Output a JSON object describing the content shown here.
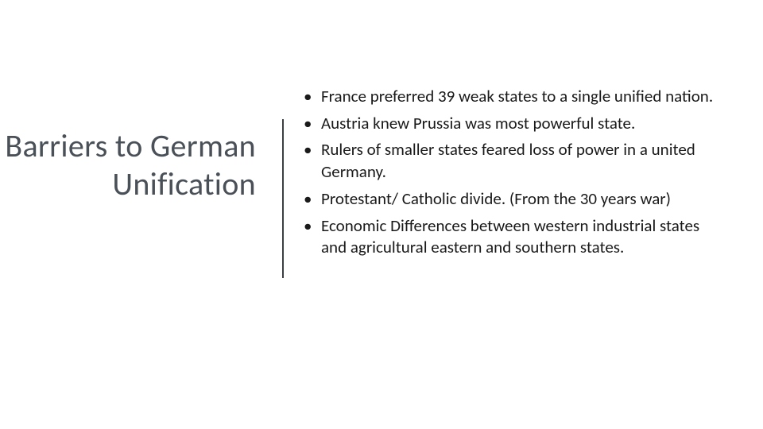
{
  "slide": {
    "title": "Barriers to German Unification",
    "title_color": "#4a5057",
    "title_fontsize": 40,
    "title_fontweight": 300,
    "divider_color": "#3a3f44",
    "background_color": "#ffffff",
    "bullet_color": "#1a1a1a",
    "bullet_fontsize": 21,
    "bullets": [
      "France preferred 39 weak states to a single unified nation.",
      "Austria knew Prussia was most powerful state.",
      "Rulers of smaller states feared loss of power in a united Germany.",
      "Protestant/ Catholic divide. (From the 30 years war)",
      "Economic Differences between western industrial states and agricultural eastern and southern states."
    ]
  }
}
